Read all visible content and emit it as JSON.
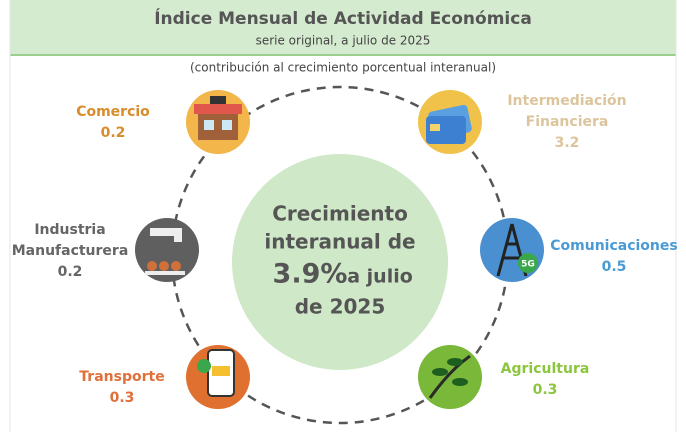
{
  "header": {
    "title": "Índice Mensual de Actividad Económica",
    "subtitle": "serie original, a julio de 2025"
  },
  "note": "(contribución al crecimiento porcentual interanual)",
  "center": {
    "lines_before": [
      "Crecimiento",
      "interanual de"
    ],
    "highlight": "3.9%",
    "after": "a julio",
    "last": "de 2025"
  },
  "sectors": [
    {
      "name": [
        "Comercio"
      ],
      "value": 0.2
    },
    {
      "name": [
        "Intermediación",
        "Financiera"
      ],
      "value": 3.2
    },
    {
      "name": [
        "Industria",
        "Manufacturera"
      ],
      "value": 0.2
    },
    {
      "name": [
        "Comunicaciones"
      ],
      "value": 0.5
    },
    {
      "name": [
        "Transporte"
      ],
      "value": 0.3
    },
    {
      "name": [
        "Agricultura"
      ],
      "value": 0.3
    }
  ]
}
